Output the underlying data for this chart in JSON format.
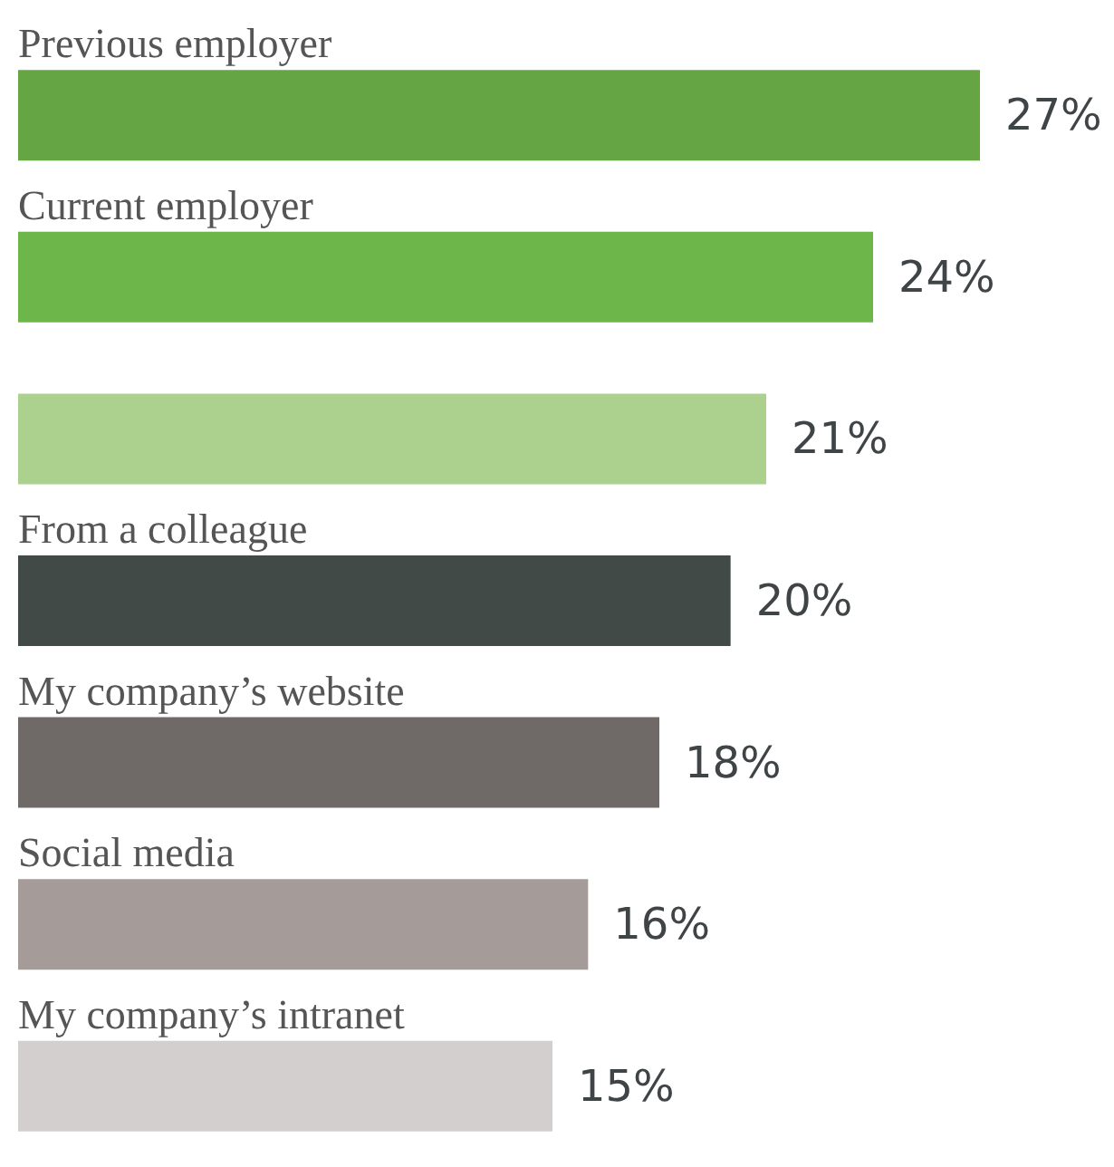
{
  "chart_data": {
    "type": "bar",
    "orientation": "horizontal",
    "value_labels": [
      "27%",
      "24%",
      "21%",
      "20%",
      "18%",
      "16%",
      "15%"
    ],
    "categories": [
      "Previous employer",
      "Current employer",
      null,
      "From a colleague",
      "My company’s website",
      "Social media",
      "My company’s intranet"
    ],
    "values": [
      27,
      24,
      21,
      20,
      18,
      16,
      15
    ],
    "colors": [
      "#66a544",
      "#6db64a",
      "#acd18f",
      "#414a47",
      "#6f6a68",
      "#a59c9a",
      "#d4cfcf"
    ]
  }
}
